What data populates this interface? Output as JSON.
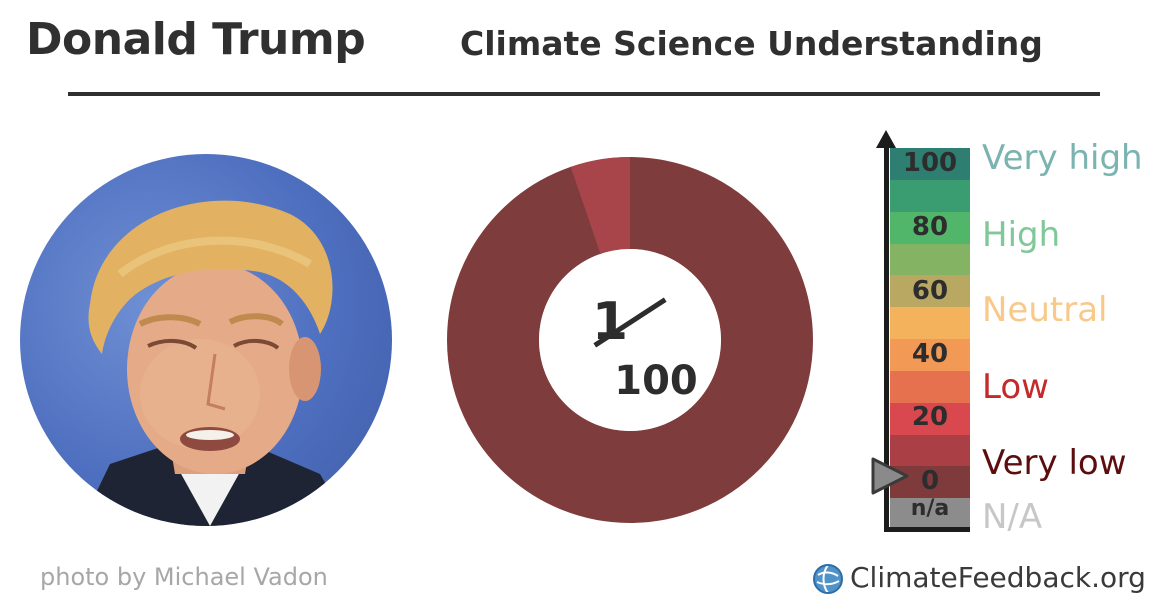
{
  "header": {
    "name": "Donald Trump",
    "metric": "Climate Science Understanding"
  },
  "score": {
    "value": 1,
    "numerator": "1",
    "denominator": "100"
  },
  "scale": {
    "ticks": [
      "100",
      "80",
      "60",
      "40",
      "20",
      "0",
      "n/a"
    ],
    "levels": [
      {
        "label": "Very high",
        "color": "#7ab3b0"
      },
      {
        "label": "High",
        "color": "#80c89a"
      },
      {
        "label": "Neutral",
        "color": "#f8c98a"
      },
      {
        "label": "Low",
        "color": "#c42a2a"
      },
      {
        "label": "Very low",
        "color": "#5c0d0d"
      },
      {
        "label": "N/A",
        "color": "#c7c7c7"
      }
    ],
    "segment_colors": [
      "#2e7f72",
      "#3a9d71",
      "#51b56a",
      "#84b364",
      "#b8a862",
      "#f5b25c",
      "#f29a55",
      "#e6714f",
      "#d9474f",
      "#aa4046",
      "#7f3a3b",
      "#8c8c8c"
    ]
  },
  "donut": {
    "main_color": "#7f3c3c",
    "highlight_color": "#a8454a"
  },
  "footer": {
    "credit": "photo by Michael Vadon",
    "brand": "ClimateFeedback.org"
  }
}
